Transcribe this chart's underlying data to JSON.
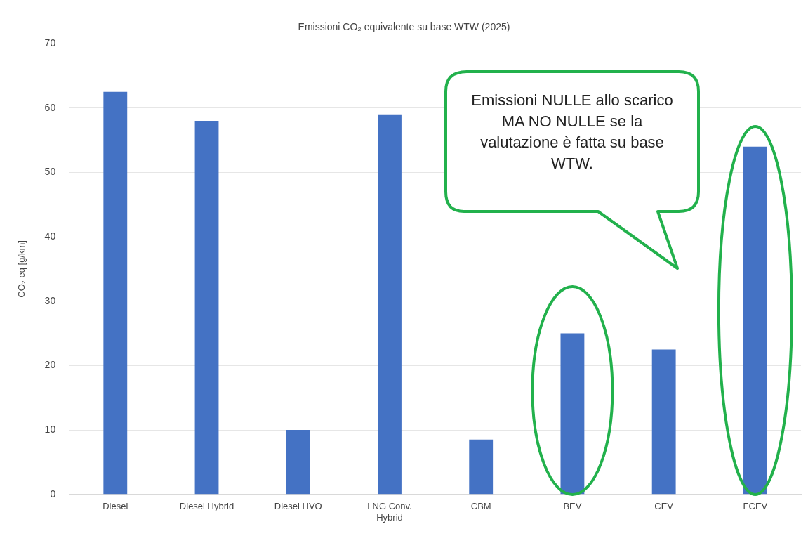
{
  "chart_data": {
    "type": "bar",
    "title": "Emissioni CO₂ equivalente su base WTW (2025)",
    "ylabel": "CO₂ eq [g/km]",
    "categories": [
      "Diesel",
      "Diesel Hybrid",
      "Diesel HVO",
      "LNG Conv. Hybrid",
      "CBM",
      "BEV",
      "CEV",
      "FCEV"
    ],
    "values": [
      62.5,
      58,
      10,
      59,
      8.5,
      25,
      22.5,
      54
    ],
    "color": "#4472c4",
    "ylim": [
      0,
      70
    ],
    "yticks": [
      0,
      10,
      20,
      30,
      40,
      50,
      60,
      70
    ],
    "grid": "y",
    "legend": false,
    "annotations": [
      "Emissioni NULLE  allo scarico MA NO  NULLE se la valutazione è fatta su base WTW."
    ]
  }
}
